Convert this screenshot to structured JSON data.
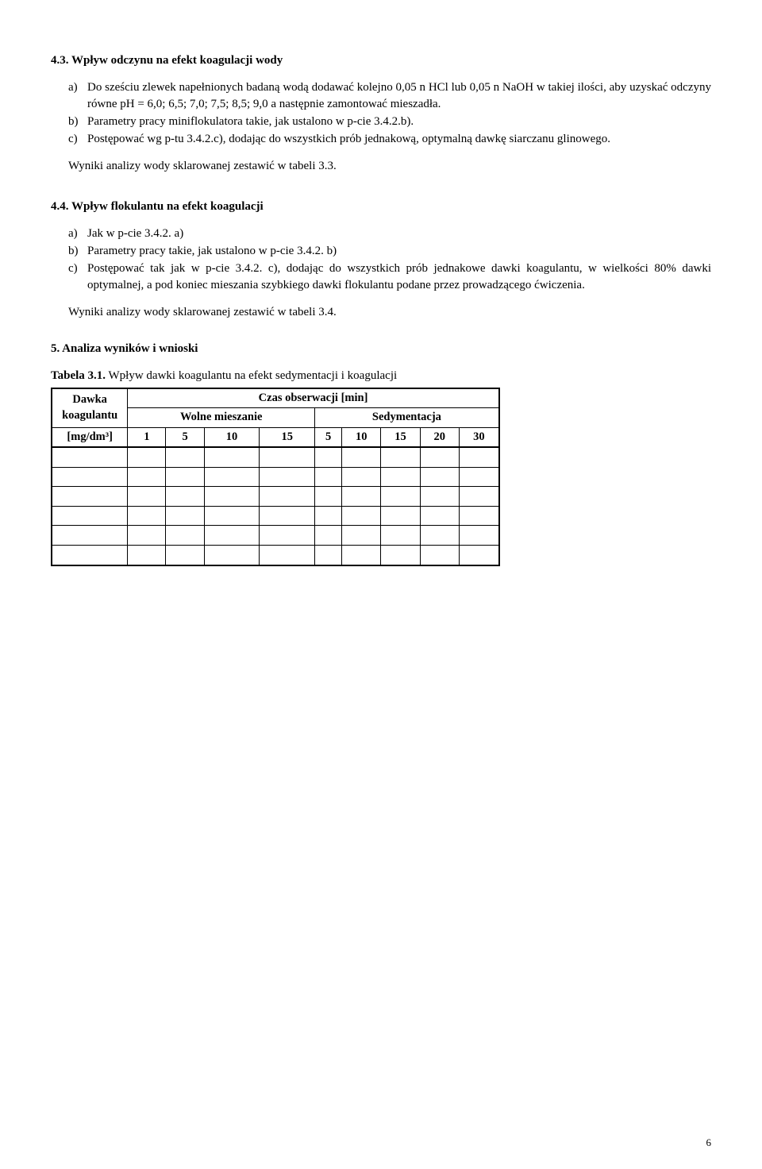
{
  "s43": {
    "heading": "4.3.  Wpływ odczynu na efekt koagulacji wody",
    "a": "Do sześciu zlewek napełnionych badaną wodą dodawać kolejno 0,05 n HCl lub 0,05 n NaOH w takiej ilości, aby uzyskać odczyny równe pH = 6,0; 6,5; 7,0; 7,5; 8,5; 9,0 a następnie zamontować mieszadła.",
    "b": "Parametry pracy miniflokulatora takie, jak ustalono w p-cie 3.4.2.b).",
    "c": "Postępować wg p-tu 3.4.2.c), dodając do wszystkich prób jednakową, optymalną dawkę siarczanu glinowego.",
    "note": "Wyniki analizy wody sklarowanej zestawić w tabeli 3.3."
  },
  "s44": {
    "heading": "4.4.   Wpływ flokulantu na efekt koagulacji",
    "a": "Jak w  p-cie 3.4.2. a)",
    "b": "Parametry pracy takie, jak ustalono w p-cie 3.4.2. b)",
    "c": "Postępować tak jak w p-cie 3.4.2. c), dodając do wszystkich prób jednakowe dawki koagulantu, w wielkości 80% dawki optymalnej, a pod koniec mieszania szybkiego dawki flokulantu podane przez prowadzącego ćwiczenia.",
    "note": "Wyniki analizy wody sklarowanej zestawić w tabeli 3.4."
  },
  "s5": {
    "heading": "5.   Analiza wyników i wnioski"
  },
  "table": {
    "caption_bold": "Tabela 3.1.",
    "caption_rest": " Wpływ dawki koagulantu na efekt sedymentacji i koagulacji",
    "h_dawka": "Dawka koagulantu",
    "h_unit": "[mg/dm³]",
    "h_czas": "Czas obserwacji [min]",
    "h_wolne": "Wolne mieszanie",
    "h_sedym": "Sedymentacja",
    "cols_wolne": [
      "1",
      "5",
      "10",
      "15"
    ],
    "cols_sedym": [
      "5",
      "10",
      "15",
      "20",
      "30"
    ],
    "data_row_count": 6
  },
  "markers": {
    "a": "a)",
    "b": "b)",
    "c": "c)"
  },
  "page_num": "6"
}
